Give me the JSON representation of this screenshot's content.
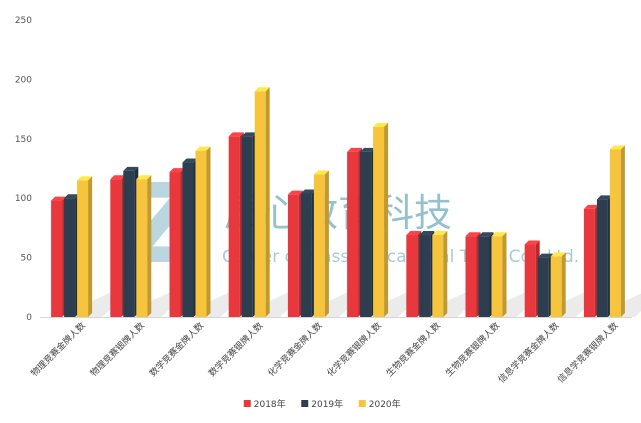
{
  "chart_data": {
    "type": "bar",
    "title": "",
    "xlabel": "",
    "ylabel": "",
    "ylim": [
      0,
      250
    ],
    "yticks": [
      0,
      50,
      100,
      150,
      200,
      250
    ],
    "grid": false,
    "legend_position": "bottom-center",
    "categories": [
      "物理竞赛金牌人数",
      "物理竞赛银牌人数",
      "数学竞赛金牌人数",
      "数学竞赛银牌人数",
      "化学竞赛金牌人数",
      "化学竞赛银牌人数",
      "生物竞赛金牌人数",
      "生物竞赛银牌人数",
      "信息学竞赛金牌人数",
      "信息学竞赛银牌人数"
    ],
    "series": [
      {
        "name": "2018年",
        "color": "#e8383d",
        "values": [
          98,
          116,
          122,
          152,
          103,
          139,
          69,
          68,
          61,
          91
        ]
      },
      {
        "name": "2019年",
        "color": "#2d3e50",
        "values": [
          100,
          123,
          130,
          152,
          104,
          139,
          69,
          68,
          50,
          99
        ]
      },
      {
        "name": "2020年",
        "color": "#f6c53d",
        "values": [
          115,
          116,
          140,
          190,
          120,
          160,
          69,
          68,
          51,
          141
        ]
      }
    ]
  },
  "watermark": {
    "chinese": "质心教育科技",
    "english": "Center of Mass Educational Tech. Co., Ltd.",
    "letter": "Z"
  }
}
